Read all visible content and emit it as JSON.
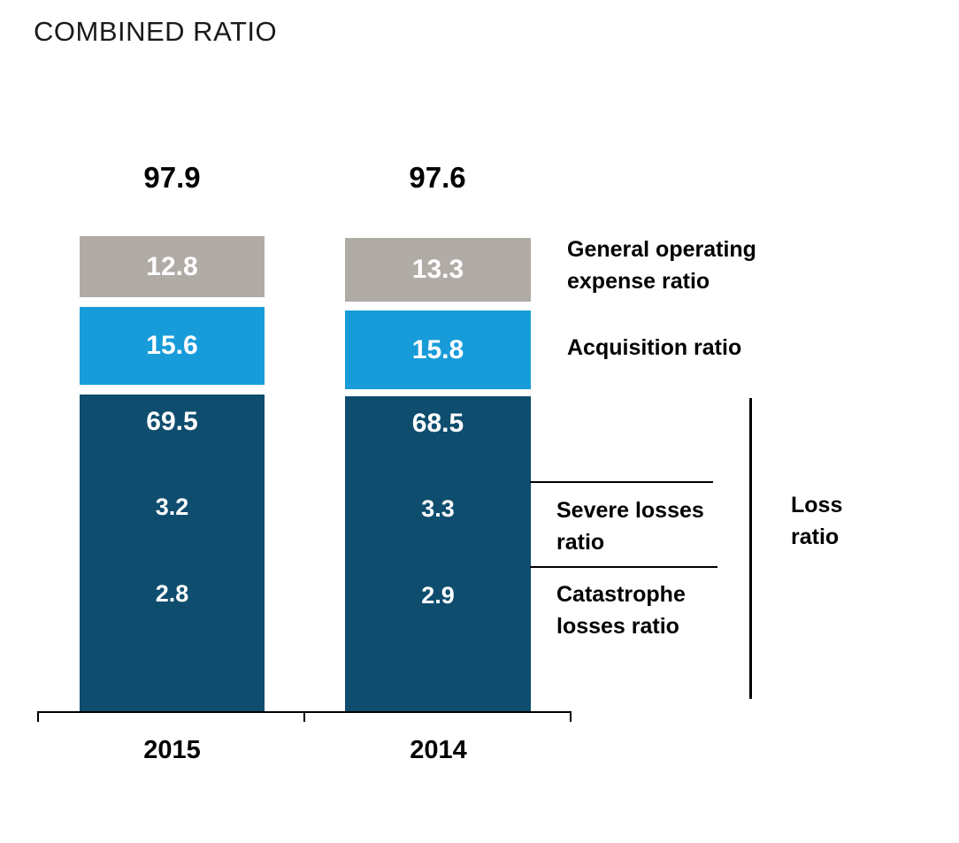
{
  "title": "COMBINED RATIO",
  "colors": {
    "loss_ratio": "#0e4d6e",
    "acquisition_ratio": "#189cd9",
    "general_operating_expense_ratio": "#b1aba6",
    "text_on_bar": "#ffffff",
    "axis": "#000000"
  },
  "chart_data": {
    "type": "bar",
    "stacked": true,
    "title": "COMBINED RATIO",
    "categories": [
      "2015",
      "2014"
    ],
    "totals": [
      "97.9",
      "97.6"
    ],
    "series": [
      {
        "name": "Loss ratio",
        "color": "#0e4d6e",
        "values": [
          69.5,
          68.5
        ]
      },
      {
        "name": "Acquisition ratio",
        "color": "#189cd9",
        "values": [
          15.6,
          15.8
        ]
      },
      {
        "name": "General operating expense ratio",
        "color": "#b1aba6",
        "values": [
          12.8,
          13.3
        ]
      }
    ],
    "loss_detail": {
      "severe": {
        "label": "Severe losses ratio",
        "values": [
          3.2,
          3.3
        ]
      },
      "catastrophe": {
        "label": "Catastrophe losses ratio",
        "values": [
          2.8,
          2.9
        ]
      }
    },
    "legend_position": "right",
    "grid": false
  },
  "labels": {
    "general": "General operating expense ratio",
    "acquisition": "Acquisition ratio",
    "severe": "Severe losses ratio",
    "catastrophe": "Catastrophe losses ratio",
    "loss": "Loss ratio"
  }
}
